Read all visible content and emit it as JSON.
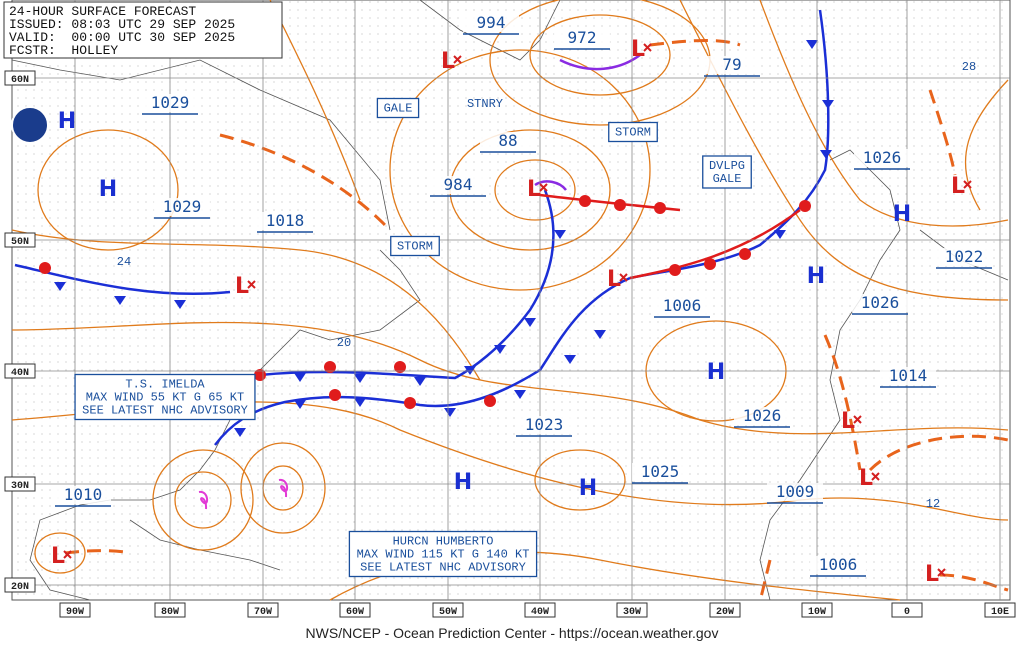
{
  "header": {
    "lines": [
      "24-HOUR SURFACE FORECAST",
      "ISSUED: 08:03 UTC 29 SEP 2025",
      "VALID:  00:00 UTC 30 SEP 2025",
      "FCSTR:  HOLLEY"
    ]
  },
  "pressure_labels": [
    1029,
    1029,
    1018,
    984,
    88,
    994,
    972,
    79,
    1026,
    1022,
    1026,
    1014,
    1006,
    1023,
    1025,
    1026,
    1009,
    1006,
    1010
  ],
  "isobar_labels": [
    24,
    20,
    28,
    12
  ],
  "boxes": [
    {
      "lines": [
        "GALE"
      ]
    },
    {
      "lines": [
        "STORM"
      ]
    },
    {
      "lines": [
        "STORM"
      ]
    },
    {
      "lines": [
        "DVLPG",
        "GALE"
      ]
    },
    {
      "lines": [
        "T.S. IMELDA",
        "MAX WIND 55 KT G 65 KT",
        "SEE LATEST NHC ADVISORY"
      ]
    },
    {
      "lines": [
        "HURCN HUMBERTO",
        "MAX WIND 115 KT G 140 KT",
        "SEE LATEST NHC ADVISORY"
      ]
    }
  ],
  "stationary_label": "STNRY",
  "high_centers": [
    "H",
    "H",
    "H",
    "H",
    "H",
    "H",
    "H"
  ],
  "low_centers": [
    "L",
    "L",
    "L",
    "L",
    "L",
    "L",
    "L",
    "L",
    "L",
    "L"
  ],
  "latitude_labels": [
    "60N",
    "50N",
    "40N",
    "30N",
    "20N"
  ],
  "longitude_labels": [
    "90W",
    "80W",
    "70W",
    "60W",
    "50W",
    "40W",
    "30W",
    "20W",
    "10W",
    "0",
    "10E"
  ],
  "footer": "NWS/NCEP - Ocean Prediction Center - https://ocean.weather.gov"
}
